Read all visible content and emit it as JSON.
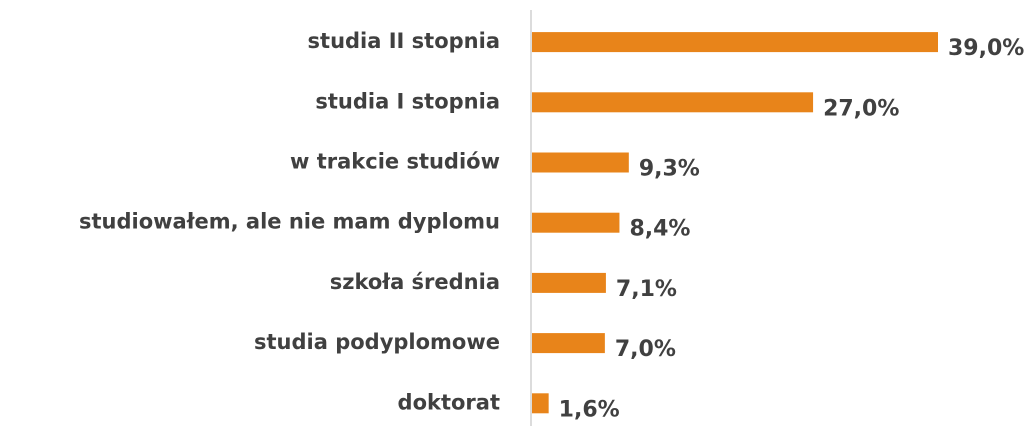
{
  "chart_data": {
    "type": "barh",
    "categories": [
      "studia II stopnia",
      "studia I stopnia",
      "w trakcie studiów",
      "studiowałem, ale nie mam dyplomu",
      "szkoła średnia",
      "studia podyplomowe",
      "doktorat"
    ],
    "values": [
      39.0,
      27.0,
      9.3,
      8.4,
      7.1,
      7.0,
      1.6
    ],
    "value_labels": [
      "39,0%",
      "27,0%",
      "9,3%",
      "8,4%",
      "7,1%",
      "7,0%",
      "1,6%"
    ],
    "color": "#e8841a"
  }
}
